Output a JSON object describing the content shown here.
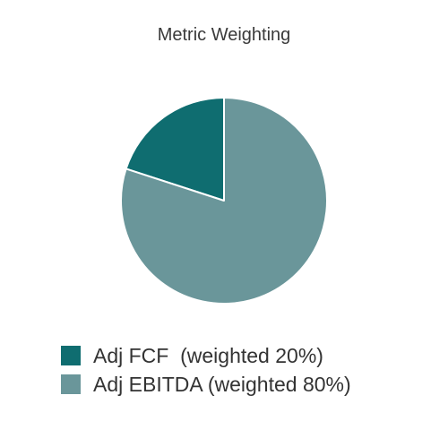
{
  "chart_data": {
    "type": "pie",
    "title": "Metric Weighting",
    "slices": [
      {
        "label": "Adj FCF  (weighted 20%)",
        "value": 20,
        "color": "#0f6d70"
      },
      {
        "label": "Adj EBITDA (weighted 80%)",
        "value": 80,
        "color": "#6a969a"
      }
    ],
    "legend_position": "bottom"
  }
}
